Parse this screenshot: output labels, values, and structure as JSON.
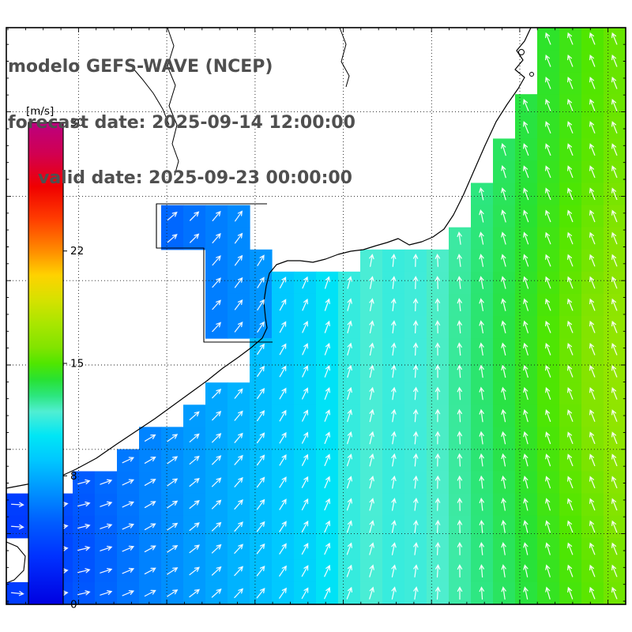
{
  "header": {
    "line1": "modelo GEFS-WAVE (NCEP)",
    "line2": "forecast date: 2025-09-14 12:00:00",
    "line3": "valid date: 2025-09-23 00:00:00"
  },
  "colorbar": {
    "unit_label": "[m/s]",
    "min": 0,
    "max": 30,
    "ticks": [
      {
        "label": "30",
        "value": 30
      },
      {
        "label": "22",
        "value": 22
      },
      {
        "label": "15",
        "value": 15
      },
      {
        "label": "8",
        "value": 8
      },
      {
        "label": "0",
        "value": 0
      }
    ],
    "stops": [
      {
        "v": 0,
        "c": "#0000e1"
      },
      {
        "v": 3,
        "c": "#0032ff"
      },
      {
        "v": 5,
        "c": "#005aff"
      },
      {
        "v": 7,
        "c": "#0091ff"
      },
      {
        "v": 9,
        "c": "#00c8ff"
      },
      {
        "v": 10.5,
        "c": "#00e6f5"
      },
      {
        "v": 12,
        "c": "#50eed2"
      },
      {
        "v": 13,
        "c": "#2ce67d"
      },
      {
        "v": 14,
        "c": "#28e232"
      },
      {
        "v": 15,
        "c": "#50e600"
      },
      {
        "v": 16,
        "c": "#82e400"
      },
      {
        "v": 17.5,
        "c": "#aae600"
      },
      {
        "v": 19,
        "c": "#d7e100"
      },
      {
        "v": 20.5,
        "c": "#ffd200"
      },
      {
        "v": 22,
        "c": "#ff8c00"
      },
      {
        "v": 24,
        "c": "#ff3c00"
      },
      {
        "v": 26,
        "c": "#f00000"
      },
      {
        "v": 28,
        "c": "#d20050"
      },
      {
        "v": 30,
        "c": "#bb0080"
      }
    ]
  },
  "map": {
    "land_color": "#ffffff",
    "coast_color": "#000000",
    "arrow_color": "#ffffff",
    "grid_color": "#1a1a1a",
    "title_color": "#4f4f4f"
  },
  "chart_data": {
    "type": "heatmap",
    "title": "modelo GEFS-WAVE (NCEP)",
    "units": "m/s",
    "field": "wind speed (shaded cells) with white wind-direction arrows over the ocean",
    "colorbar_range": [
      0,
      30
    ],
    "colorbar_ticks": [
      0,
      8,
      15,
      22,
      30
    ],
    "approx_values": {
      "southwest_coastal_water": "4-7",
      "central_offshore": "9-12",
      "east_and_northeast_offshore": "13-17"
    },
    "arrow_pattern": "easterly flow near the southwest coast veering to northerly / slightly north-northwesterly toward the east"
  }
}
